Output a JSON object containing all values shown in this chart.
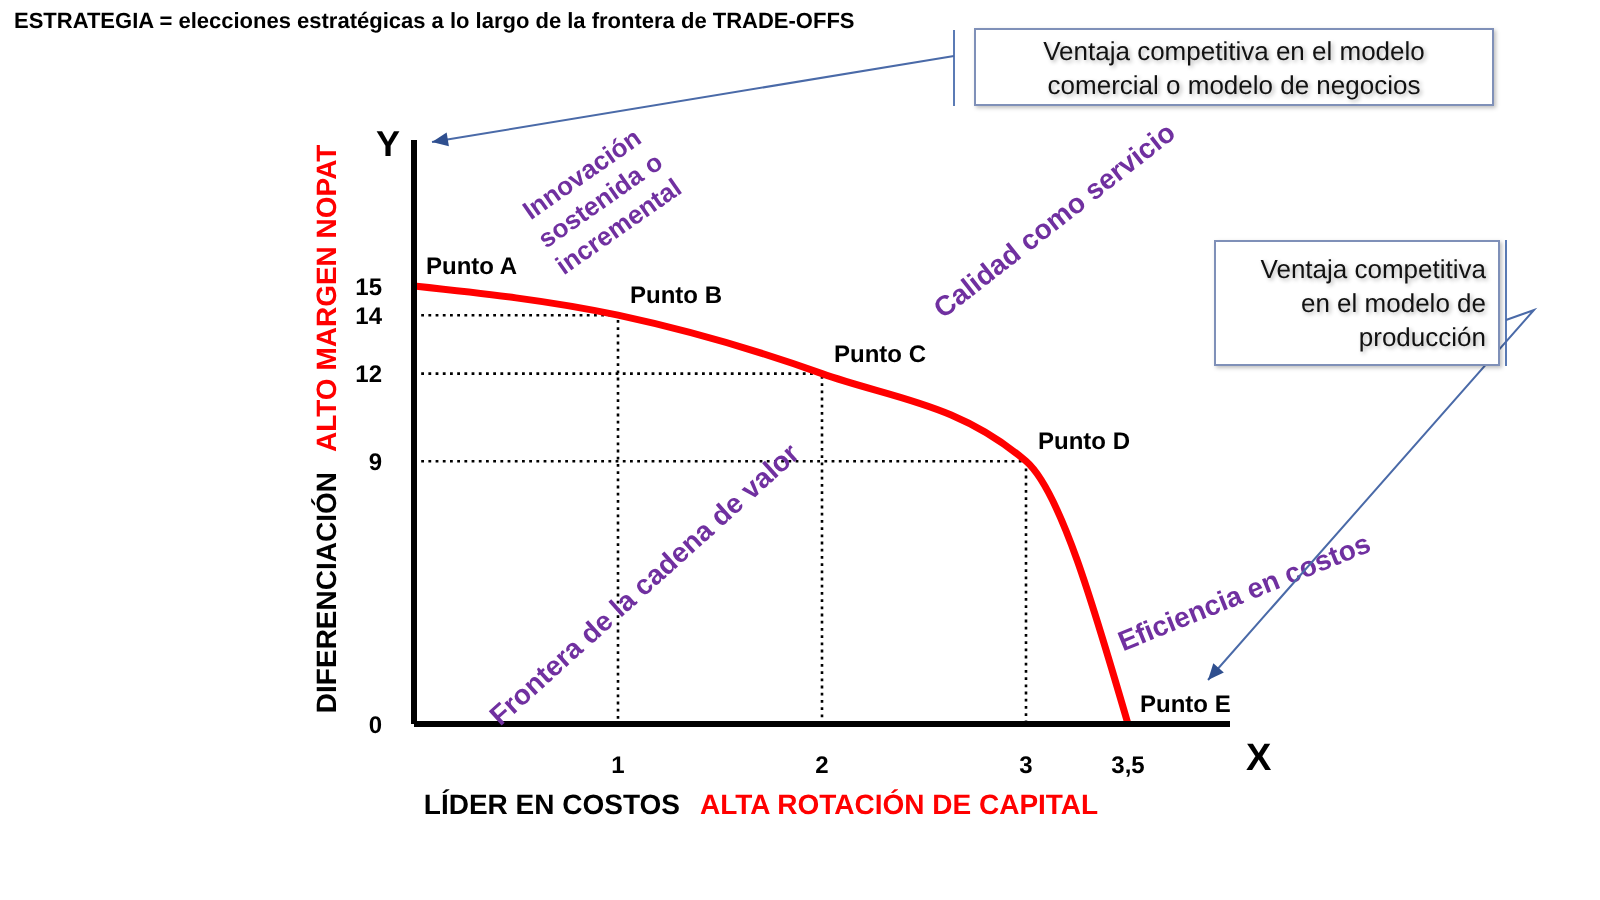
{
  "chart_data": {
    "type": "line",
    "title": "ESTRATEGIA = elecciones estratégicas a lo largo de la frontera de TRADE-OFFS",
    "xlabel": "X",
    "ylabel": "Y",
    "series": [
      {
        "color": "#ff0000",
        "x": [
          0,
          1,
          2,
          3,
          3.5
        ],
        "values": [
          15,
          14,
          12,
          9,
          0
        ]
      },
      {
        "color": "#000000",
        "x": [
          0,
          1,
          1
        ],
        "values": [
          14,
          14,
          0
        ],
        "line_style": "dotted"
      },
      {
        "color": "#000000",
        "x": [
          0,
          2,
          2
        ],
        "values": [
          12,
          12,
          0
        ],
        "line_style": "dotted"
      },
      {
        "color": "#000000",
        "x": [
          0,
          3,
          3
        ],
        "values": [
          9,
          9,
          0
        ],
        "line_style": "dotted"
      }
    ],
    "xlim": [
      0,
      4
    ],
    "xticks": [
      1,
      2,
      3,
      {
        "value": 3.5,
        "label": "3,5"
      }
    ],
    "ylim": [
      0,
      20
    ],
    "yticks": [
      0,
      9,
      12,
      14,
      15
    ],
    "marker": "none",
    "line_style": "solid",
    "annotations": [
      {
        "text": "Punto A",
        "x": 0,
        "y": 15
      },
      {
        "text": "Punto B",
        "x": 1,
        "y": 14
      },
      {
        "text": "Punto C",
        "x": 2,
        "y": 12
      },
      {
        "text": "Punto D",
        "x": 3,
        "y": 9
      },
      {
        "text": "Punto E",
        "x": 3.5,
        "y": 0
      },
      "Innovación sostenida o incremental",
      "Calidad como servicio",
      "Frontera de la cadena de valor",
      "Eficiencia en costos",
      "Ventaja competitiva en el modelo comercial o modelo de negocios",
      "Ventaja competitiva en el modelo de producción",
      "DIFERENCIACIÓN",
      "ALTO MARGEN NOPAT",
      "LÍDER EN COSTOS",
      "ALTA ROTACIÓN DE CAPITAL"
    ]
  }
}
